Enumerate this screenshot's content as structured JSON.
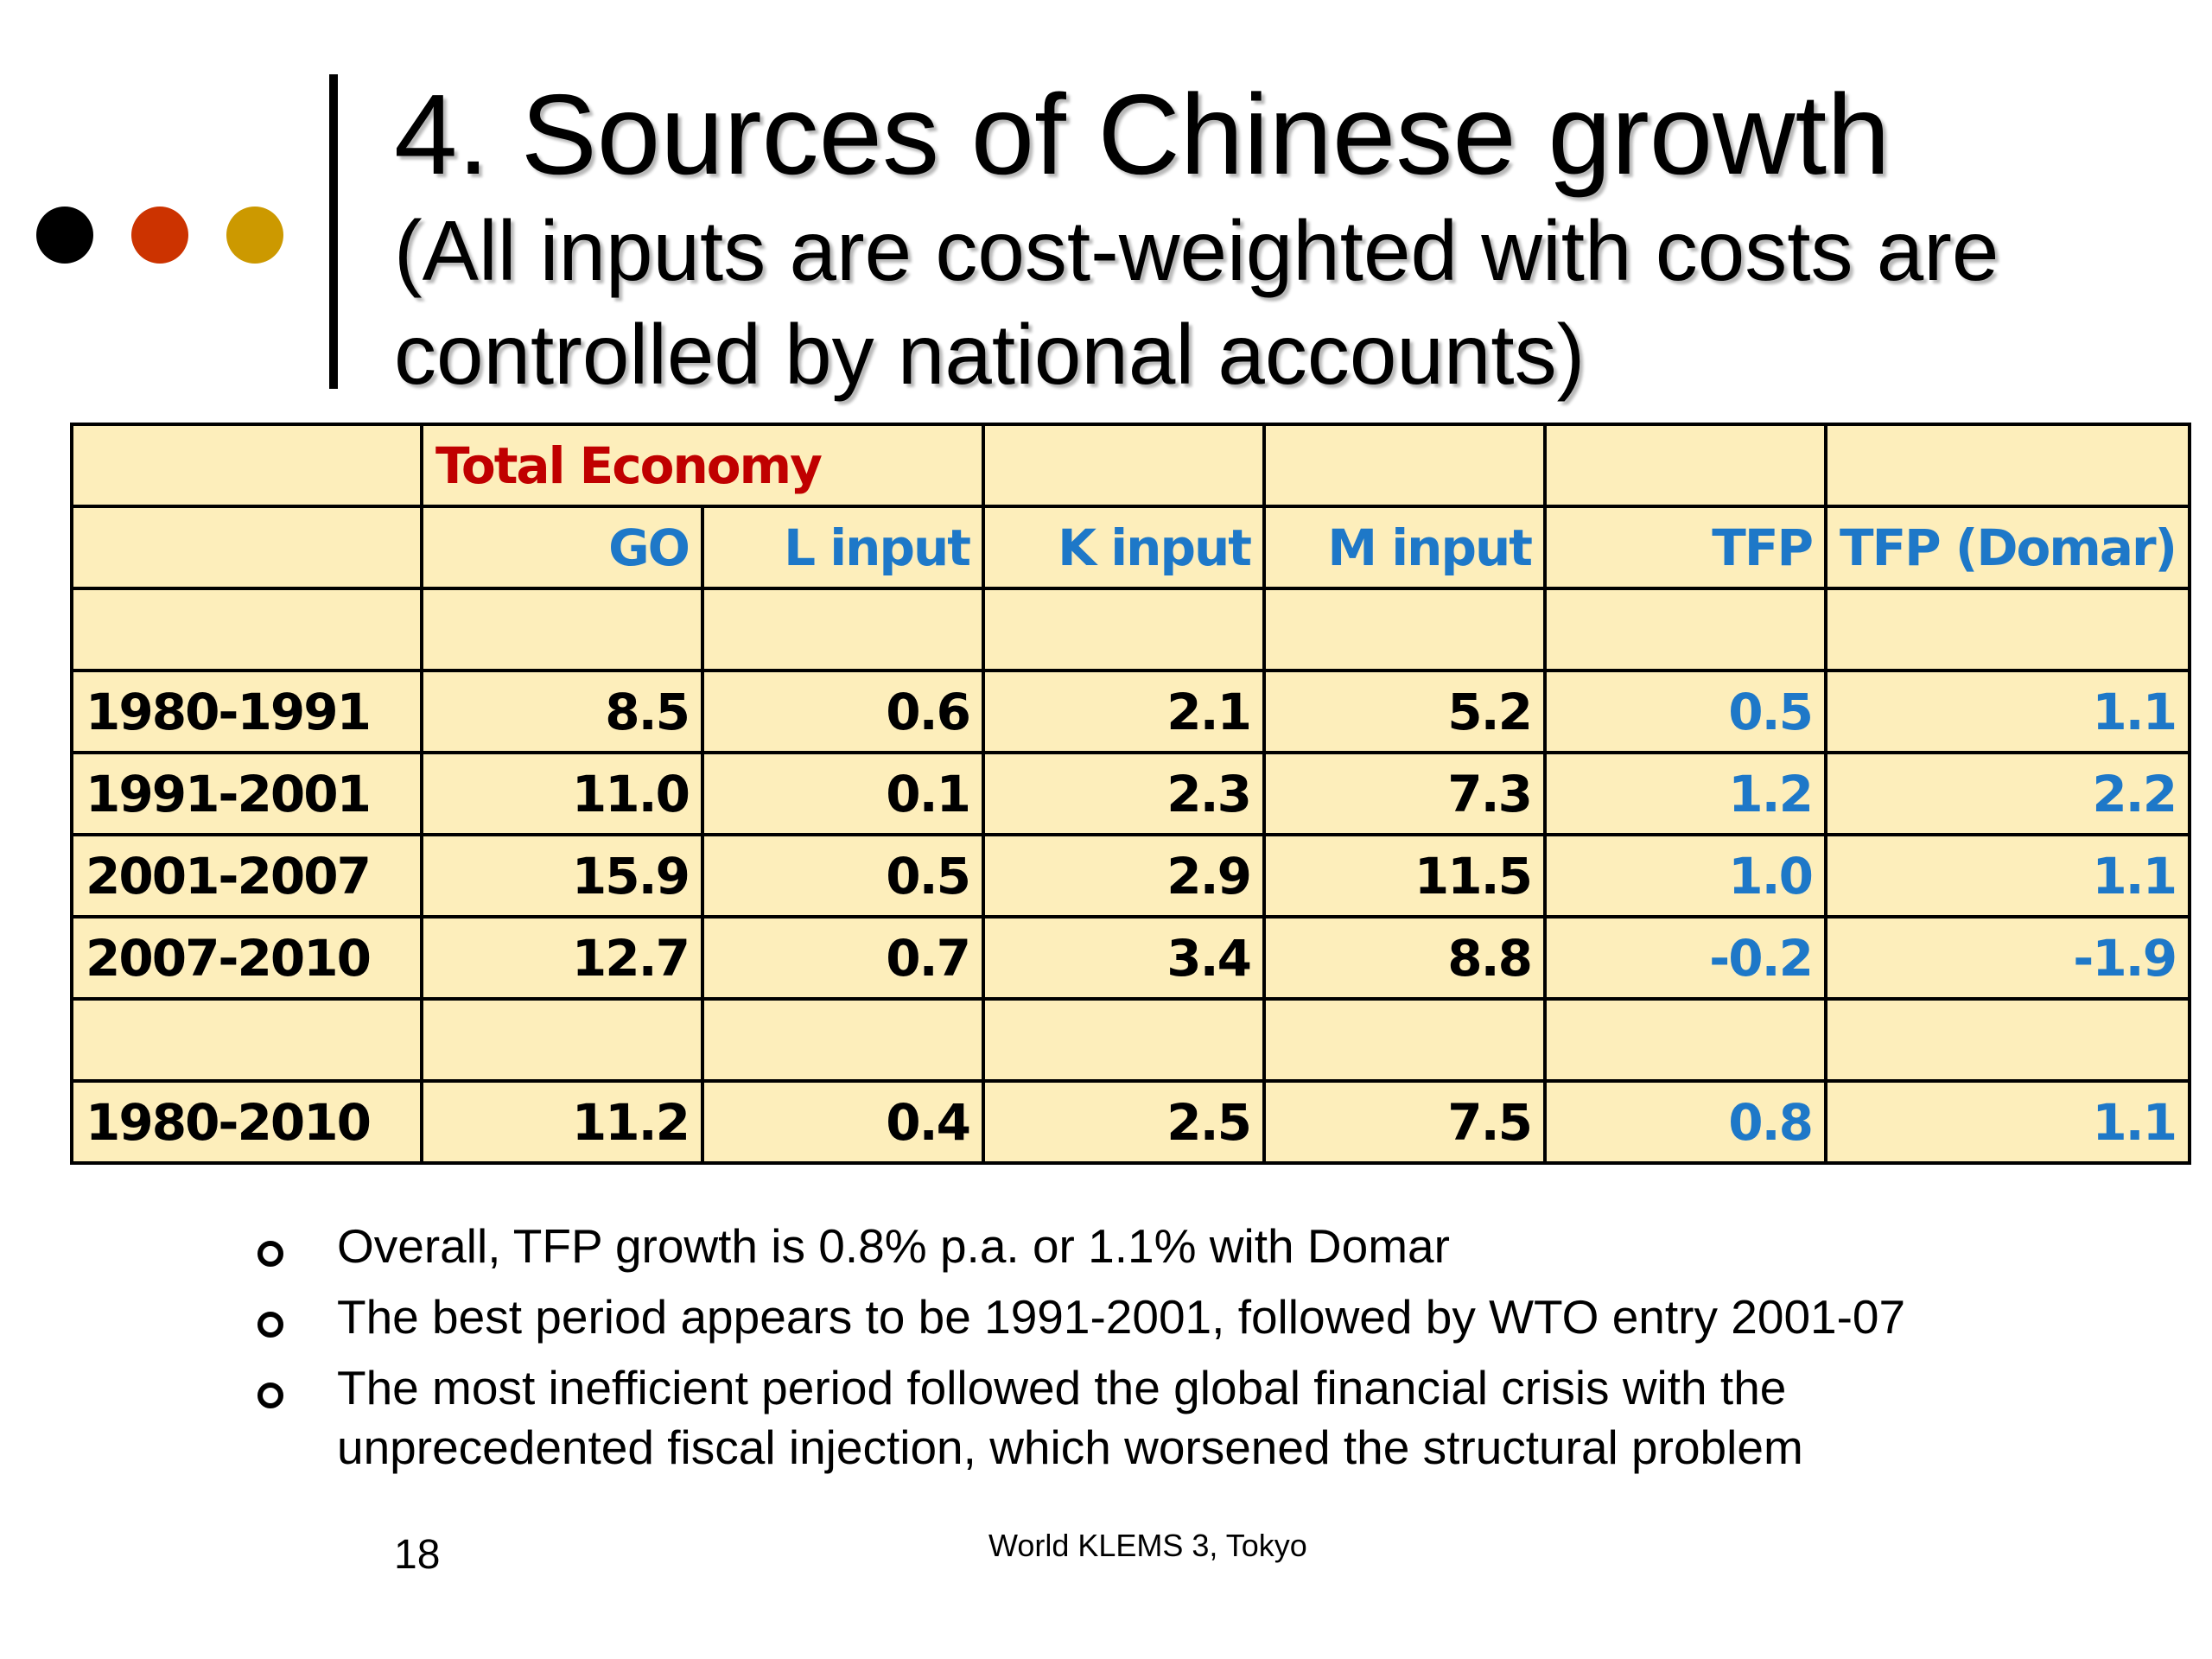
{
  "slide": {
    "title": "4. Sources of Chinese growth",
    "subtitle": "(All inputs are cost-weighted with costs are controlled by national accounts)",
    "dot_colors": [
      "#000000",
      "#cc3300",
      "#cc9900"
    ]
  },
  "table": {
    "group_title": "Total Economy",
    "headers": [
      "",
      "GO",
      "L input",
      "K input",
      "M input",
      "TFP",
      "TFP (Domar)"
    ],
    "rows": [
      {
        "label": "1980-1991",
        "values": [
          "8.5",
          "0.6",
          "2.1",
          "5.2",
          "0.5",
          "1.1"
        ]
      },
      {
        "label": "1991-2001",
        "values": [
          "11.0",
          "0.1",
          "2.3",
          "7.3",
          "1.2",
          "2.2"
        ]
      },
      {
        "label": "2001-2007",
        "values": [
          "15.9",
          "0.5",
          "2.9",
          "11.5",
          "1.0",
          "1.1"
        ]
      },
      {
        "label": "2007-2010",
        "values": [
          "12.7",
          "0.7",
          "3.4",
          "8.8",
          "-0.2",
          "-1.9"
        ]
      }
    ],
    "total_row": {
      "label": "1980-2010",
      "values": [
        "11.2",
        "0.4",
        "2.5",
        "7.5",
        "0.8",
        "1.1"
      ]
    },
    "colors": {
      "cell_bg": "#fdeebb",
      "group_title": "#c00000",
      "header": "#1e78c8",
      "tfp": "#1e78c8"
    }
  },
  "bullets": [
    "Overall, TFP growth is 0.8% p.a. or 1.1% with Domar",
    "The best period appears to be 1991-2001, followed by WTO entry 2001-07",
    "The most inefficient period followed the global financial crisis with the unprecedented fiscal injection, which worsened the structural problem"
  ],
  "footer": {
    "page_number": "18",
    "source": "World KLEMS 3, Tokyo"
  }
}
